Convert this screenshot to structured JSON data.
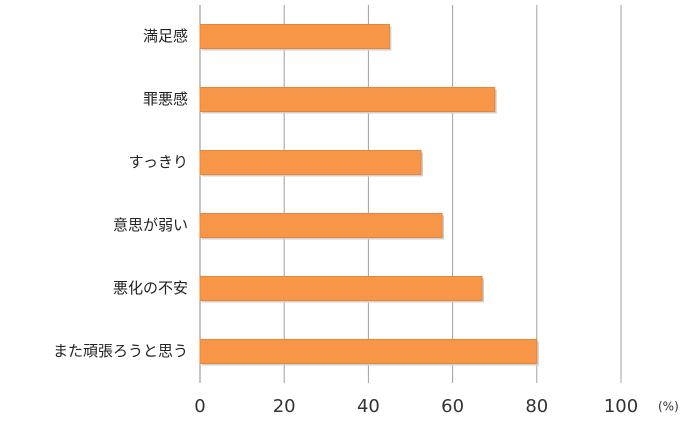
{
  "chart_data": {
    "type": "hbar",
    "categories": [
      "満足感",
      "罪悪感",
      "すっきり",
      "意思が弱い",
      "悪化の不安",
      "また頑張ろうと思う"
    ],
    "values": [
      45,
      70,
      52.5,
      57.5,
      67,
      80
    ],
    "color": "#f79646",
    "xlim": [
      0,
      100
    ],
    "xticks": [
      0,
      20,
      40,
      60,
      80,
      100
    ],
    "x_unit": "(%)",
    "grid": true
  }
}
